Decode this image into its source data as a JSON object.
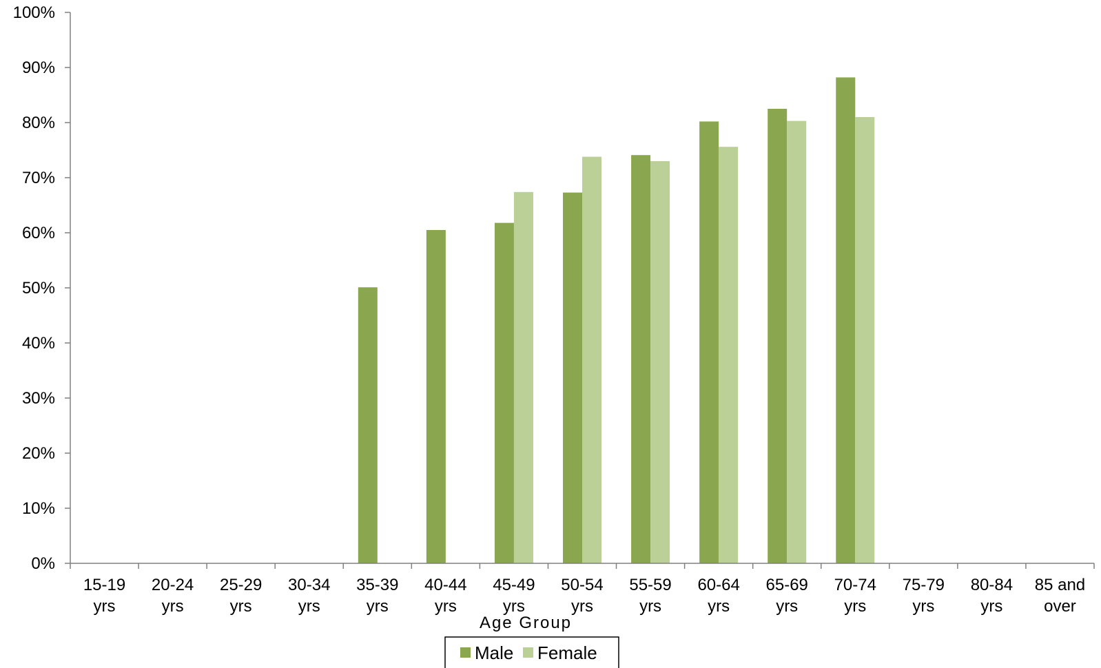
{
  "chart_data": {
    "type": "bar",
    "title": "",
    "xlabel": "Age Group",
    "ylabel": "",
    "ylim": [
      0,
      100
    ],
    "yticks": [
      "0%",
      "10%",
      "20%",
      "30%",
      "40%",
      "50%",
      "60%",
      "70%",
      "80%",
      "90%",
      "100%"
    ],
    "grid": false,
    "legend_position": "bottom",
    "categories": [
      [
        "15-19",
        "yrs"
      ],
      [
        "20-24",
        "yrs"
      ],
      [
        "25-29",
        "yrs"
      ],
      [
        "30-34",
        "yrs"
      ],
      [
        "35-39",
        "yrs"
      ],
      [
        "40-44",
        "yrs"
      ],
      [
        "45-49",
        "yrs"
      ],
      [
        "50-54",
        "yrs"
      ],
      [
        "55-59",
        "yrs"
      ],
      [
        "60-64",
        "yrs"
      ],
      [
        "65-69",
        "yrs"
      ],
      [
        "70-74",
        "yrs"
      ],
      [
        "75-79",
        "yrs"
      ],
      [
        "80-84",
        "yrs"
      ],
      [
        "85 and",
        "over"
      ]
    ],
    "series": [
      {
        "name": "Male",
        "color": "#8aa64e",
        "values": [
          null,
          null,
          null,
          null,
          50.1,
          60.5,
          61.8,
          67.3,
          74.1,
          80.2,
          82.5,
          88.2,
          null,
          null,
          null
        ]
      },
      {
        "name": "Female",
        "color": "#bad096",
        "values": [
          null,
          null,
          null,
          null,
          null,
          null,
          67.4,
          73.8,
          73.0,
          75.6,
          80.3,
          81.0,
          null,
          null,
          null
        ]
      }
    ]
  }
}
